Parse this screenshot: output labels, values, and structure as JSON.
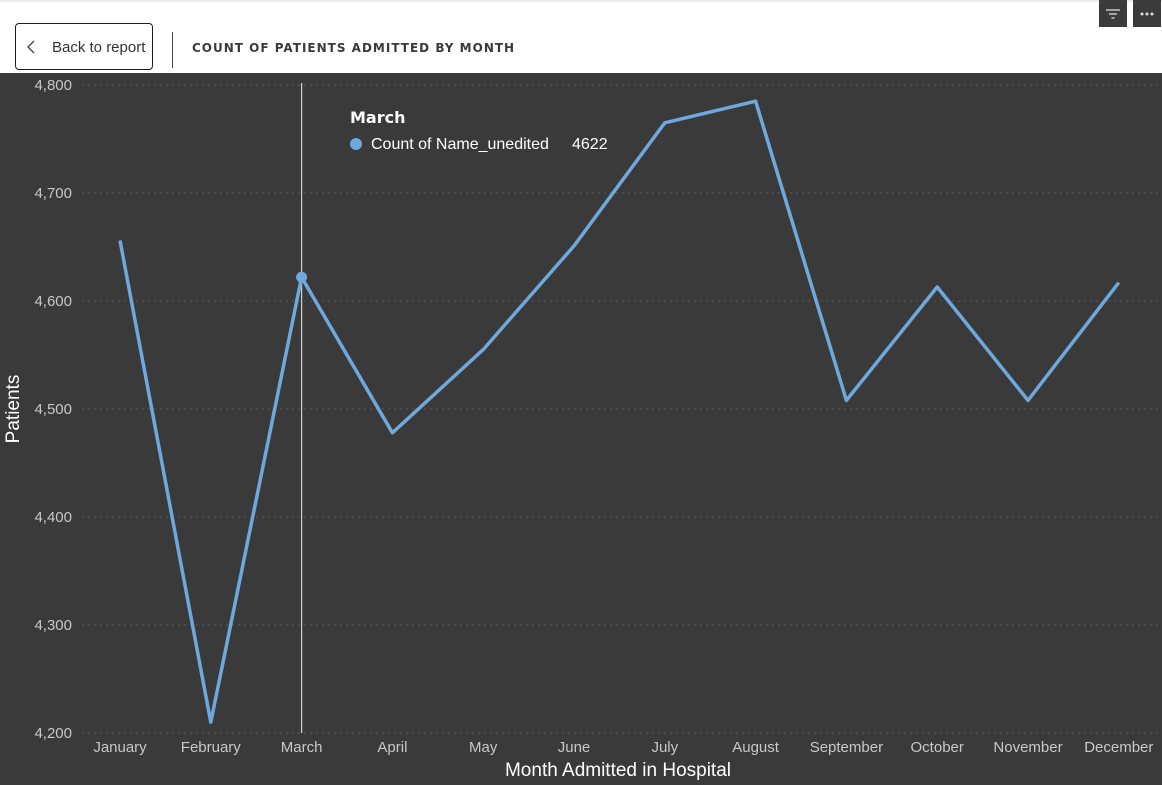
{
  "header": {
    "back_label": "Back to report",
    "title": "COUNT OF PATIENTS ADMITTED BY MONTH",
    "icons": [
      "chevron-left-icon",
      "filter-icon",
      "more-options-icon"
    ]
  },
  "tooltip": {
    "title": "March",
    "series_label": "Count of Name_unedited",
    "value": "4622"
  },
  "colors": {
    "line": "#6fa8dc",
    "background": "#3a3a3a",
    "grid": "#595959"
  },
  "chart_data": {
    "type": "line",
    "categories": [
      "January",
      "February",
      "March",
      "April",
      "May",
      "June",
      "July",
      "August",
      "September",
      "October",
      "November",
      "December"
    ],
    "series": [
      {
        "name": "Count of Name_unedited",
        "values": [
          4656,
          4210,
          4622,
          4478,
          4555,
          4651,
          4765,
          4785,
          4508,
          4613,
          4508,
          4617
        ]
      }
    ],
    "xlabel": "Month Admitted in Hospital",
    "ylabel": "Patients",
    "ylim": [
      4200,
      4800
    ],
    "yticks": [
      "4,200",
      "4,300",
      "4,400",
      "4,500",
      "4,600",
      "4,700",
      "4,800"
    ],
    "grid": true,
    "highlighted_category": "March"
  }
}
